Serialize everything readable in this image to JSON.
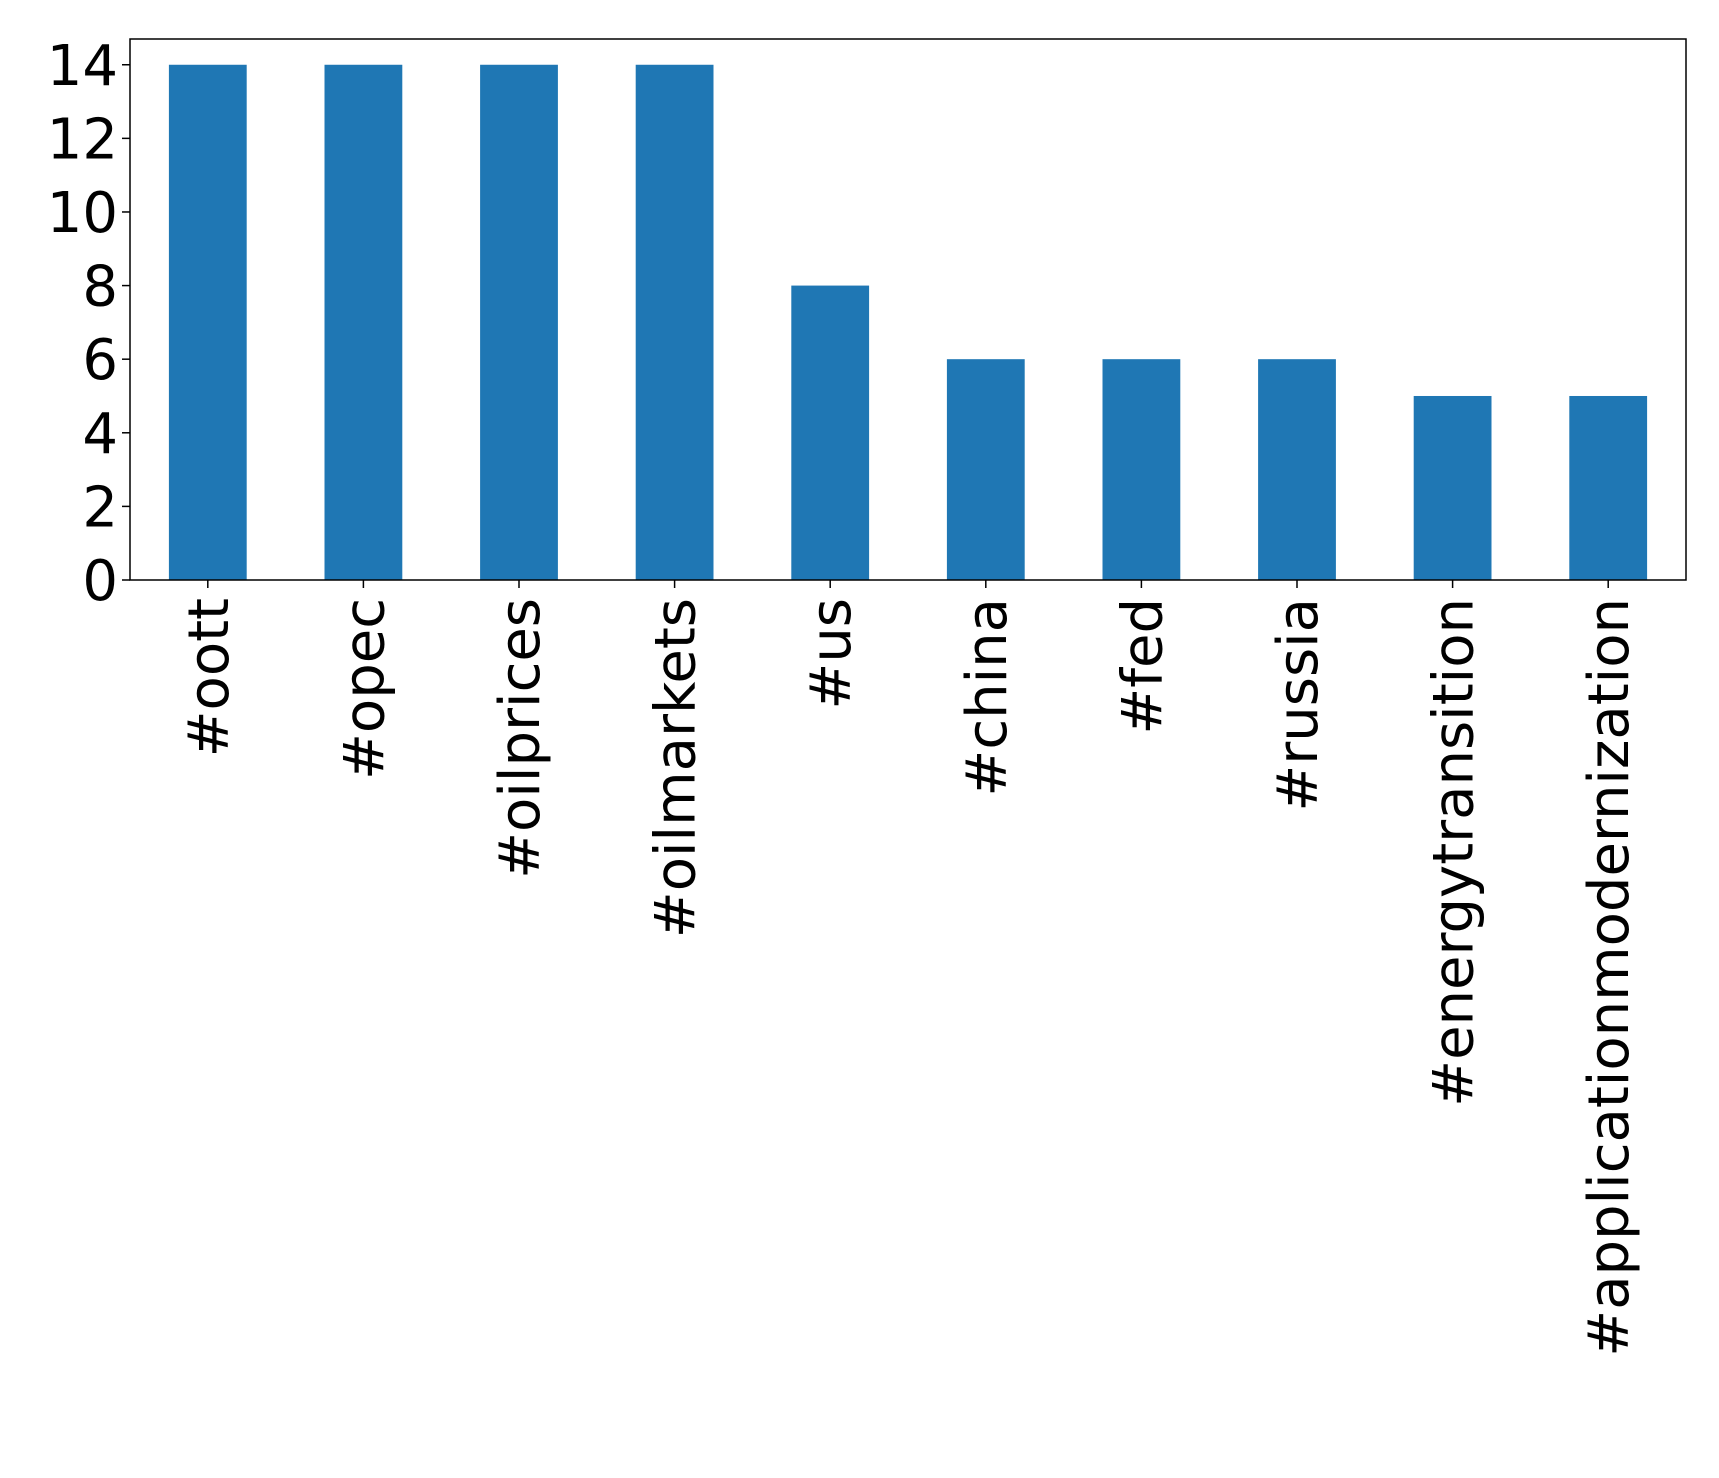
{
  "chart_data": {
    "type": "bar",
    "title": "",
    "xlabel": "",
    "ylabel": "",
    "categories": [
      "#oott",
      "#opec",
      "#oilprices",
      "#oilmarkets",
      "#us",
      "#china",
      "#fed",
      "#russia",
      "#energytransition",
      "#applicationmodernization"
    ],
    "values": [
      14,
      14,
      14,
      14,
      8,
      6,
      6,
      6,
      5,
      5
    ],
    "ylim": [
      0,
      14.7
    ],
    "yticks": [
      0,
      2,
      4,
      6,
      8,
      10,
      12,
      14
    ],
    "grid": false,
    "legend": "none",
    "colors": {
      "bar": "#1f77b4",
      "axis": "#000000",
      "background": "#ffffff"
    }
  }
}
